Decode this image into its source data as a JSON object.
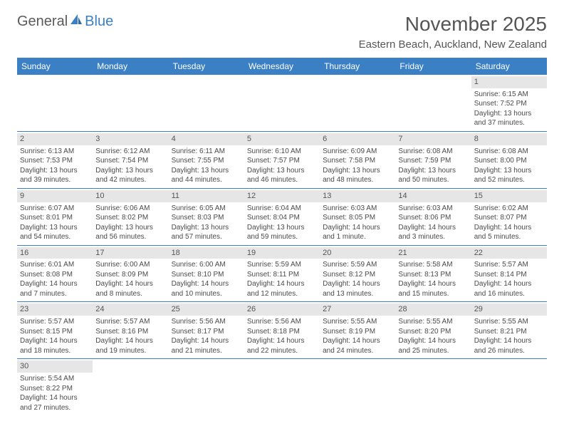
{
  "brand": {
    "part1": "General",
    "part2": "Blue"
  },
  "title": "November 2025",
  "location": "Eastern Beach, Auckland, New Zealand",
  "colors": {
    "accent": "#3b7fc4",
    "header_gray": "#e6e6e6",
    "text": "#4a4a4a",
    "title_text": "#555555",
    "background": "#ffffff"
  },
  "typography": {
    "title_fontsize": 28,
    "location_fontsize": 15,
    "dayheader_fontsize": 12,
    "cell_fontsize": 10
  },
  "day_headers": [
    "Sunday",
    "Monday",
    "Tuesday",
    "Wednesday",
    "Thursday",
    "Friday",
    "Saturday"
  ],
  "weeks": [
    [
      null,
      null,
      null,
      null,
      null,
      null,
      {
        "n": "1",
        "sunrise": "Sunrise: 6:15 AM",
        "sunset": "Sunset: 7:52 PM",
        "daylight": "Daylight: 13 hours and 37 minutes."
      }
    ],
    [
      {
        "n": "2",
        "sunrise": "Sunrise: 6:13 AM",
        "sunset": "Sunset: 7:53 PM",
        "daylight": "Daylight: 13 hours and 39 minutes."
      },
      {
        "n": "3",
        "sunrise": "Sunrise: 6:12 AM",
        "sunset": "Sunset: 7:54 PM",
        "daylight": "Daylight: 13 hours and 42 minutes."
      },
      {
        "n": "4",
        "sunrise": "Sunrise: 6:11 AM",
        "sunset": "Sunset: 7:55 PM",
        "daylight": "Daylight: 13 hours and 44 minutes."
      },
      {
        "n": "5",
        "sunrise": "Sunrise: 6:10 AM",
        "sunset": "Sunset: 7:57 PM",
        "daylight": "Daylight: 13 hours and 46 minutes."
      },
      {
        "n": "6",
        "sunrise": "Sunrise: 6:09 AM",
        "sunset": "Sunset: 7:58 PM",
        "daylight": "Daylight: 13 hours and 48 minutes."
      },
      {
        "n": "7",
        "sunrise": "Sunrise: 6:08 AM",
        "sunset": "Sunset: 7:59 PM",
        "daylight": "Daylight: 13 hours and 50 minutes."
      },
      {
        "n": "8",
        "sunrise": "Sunrise: 6:08 AM",
        "sunset": "Sunset: 8:00 PM",
        "daylight": "Daylight: 13 hours and 52 minutes."
      }
    ],
    [
      {
        "n": "9",
        "sunrise": "Sunrise: 6:07 AM",
        "sunset": "Sunset: 8:01 PM",
        "daylight": "Daylight: 13 hours and 54 minutes."
      },
      {
        "n": "10",
        "sunrise": "Sunrise: 6:06 AM",
        "sunset": "Sunset: 8:02 PM",
        "daylight": "Daylight: 13 hours and 56 minutes."
      },
      {
        "n": "11",
        "sunrise": "Sunrise: 6:05 AM",
        "sunset": "Sunset: 8:03 PM",
        "daylight": "Daylight: 13 hours and 57 minutes."
      },
      {
        "n": "12",
        "sunrise": "Sunrise: 6:04 AM",
        "sunset": "Sunset: 8:04 PM",
        "daylight": "Daylight: 13 hours and 59 minutes."
      },
      {
        "n": "13",
        "sunrise": "Sunrise: 6:03 AM",
        "sunset": "Sunset: 8:05 PM",
        "daylight": "Daylight: 14 hours and 1 minute."
      },
      {
        "n": "14",
        "sunrise": "Sunrise: 6:03 AM",
        "sunset": "Sunset: 8:06 PM",
        "daylight": "Daylight: 14 hours and 3 minutes."
      },
      {
        "n": "15",
        "sunrise": "Sunrise: 6:02 AM",
        "sunset": "Sunset: 8:07 PM",
        "daylight": "Daylight: 14 hours and 5 minutes."
      }
    ],
    [
      {
        "n": "16",
        "sunrise": "Sunrise: 6:01 AM",
        "sunset": "Sunset: 8:08 PM",
        "daylight": "Daylight: 14 hours and 7 minutes."
      },
      {
        "n": "17",
        "sunrise": "Sunrise: 6:00 AM",
        "sunset": "Sunset: 8:09 PM",
        "daylight": "Daylight: 14 hours and 8 minutes."
      },
      {
        "n": "18",
        "sunrise": "Sunrise: 6:00 AM",
        "sunset": "Sunset: 8:10 PM",
        "daylight": "Daylight: 14 hours and 10 minutes."
      },
      {
        "n": "19",
        "sunrise": "Sunrise: 5:59 AM",
        "sunset": "Sunset: 8:11 PM",
        "daylight": "Daylight: 14 hours and 12 minutes."
      },
      {
        "n": "20",
        "sunrise": "Sunrise: 5:59 AM",
        "sunset": "Sunset: 8:12 PM",
        "daylight": "Daylight: 14 hours and 13 minutes."
      },
      {
        "n": "21",
        "sunrise": "Sunrise: 5:58 AM",
        "sunset": "Sunset: 8:13 PM",
        "daylight": "Daylight: 14 hours and 15 minutes."
      },
      {
        "n": "22",
        "sunrise": "Sunrise: 5:57 AM",
        "sunset": "Sunset: 8:14 PM",
        "daylight": "Daylight: 14 hours and 16 minutes."
      }
    ],
    [
      {
        "n": "23",
        "sunrise": "Sunrise: 5:57 AM",
        "sunset": "Sunset: 8:15 PM",
        "daylight": "Daylight: 14 hours and 18 minutes."
      },
      {
        "n": "24",
        "sunrise": "Sunrise: 5:57 AM",
        "sunset": "Sunset: 8:16 PM",
        "daylight": "Daylight: 14 hours and 19 minutes."
      },
      {
        "n": "25",
        "sunrise": "Sunrise: 5:56 AM",
        "sunset": "Sunset: 8:17 PM",
        "daylight": "Daylight: 14 hours and 21 minutes."
      },
      {
        "n": "26",
        "sunrise": "Sunrise: 5:56 AM",
        "sunset": "Sunset: 8:18 PM",
        "daylight": "Daylight: 14 hours and 22 minutes."
      },
      {
        "n": "27",
        "sunrise": "Sunrise: 5:55 AM",
        "sunset": "Sunset: 8:19 PM",
        "daylight": "Daylight: 14 hours and 24 minutes."
      },
      {
        "n": "28",
        "sunrise": "Sunrise: 5:55 AM",
        "sunset": "Sunset: 8:20 PM",
        "daylight": "Daylight: 14 hours and 25 minutes."
      },
      {
        "n": "29",
        "sunrise": "Sunrise: 5:55 AM",
        "sunset": "Sunset: 8:21 PM",
        "daylight": "Daylight: 14 hours and 26 minutes."
      }
    ],
    [
      {
        "n": "30",
        "sunrise": "Sunrise: 5:54 AM",
        "sunset": "Sunset: 8:22 PM",
        "daylight": "Daylight: 14 hours and 27 minutes."
      },
      null,
      null,
      null,
      null,
      null,
      null
    ]
  ]
}
